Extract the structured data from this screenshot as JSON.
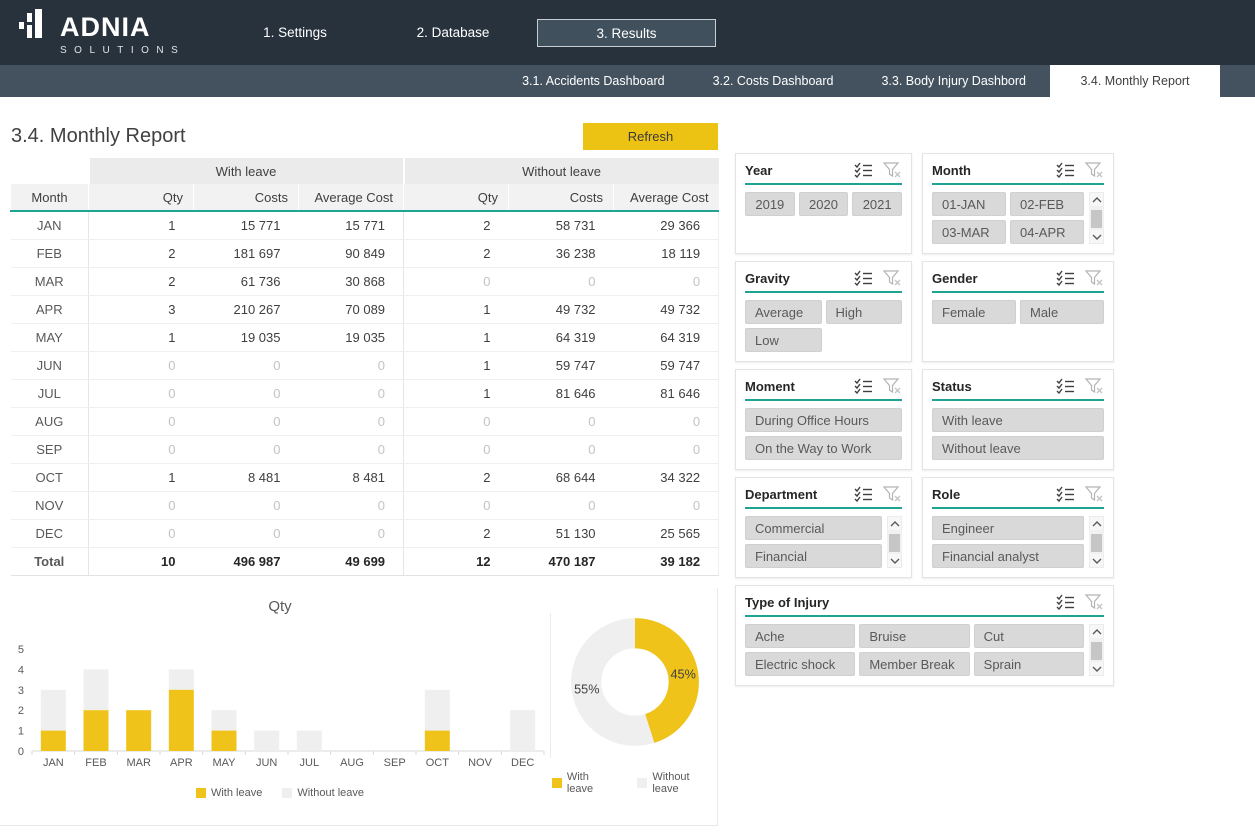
{
  "colors": {
    "header_bg": "#28323C",
    "subnav_bg": "#44525F",
    "accent_teal": "#1FA493",
    "accent_yellow": "#EDC313",
    "chart_yellow": "#EFC319",
    "chart_gray": "#EFEFEF",
    "button_gray": "#D9D9D9"
  },
  "icons": {
    "logo": "bar-chart-logo-icon",
    "multi_select": "multi-select-icon",
    "clear_filter": "clear-filter-icon",
    "scroll_up": "chevron-up-icon",
    "scroll_down": "chevron-down-icon"
  },
  "header": {
    "logo_name": "ADNIA",
    "logo_sub": "SOLUTIONS",
    "tabs": [
      {
        "label": "1. Settings",
        "active": false
      },
      {
        "label": "2. Database",
        "active": false
      },
      {
        "label": "3. Results",
        "active": true
      }
    ]
  },
  "subnav": {
    "tabs": [
      {
        "label": "3.1. Accidents Dashboard",
        "active": false
      },
      {
        "label": "3.2. Costs Dashboard",
        "active": false
      },
      {
        "label": "3.3. Body Injury Dashbord",
        "active": false
      },
      {
        "label": "3.4. Monthly Report",
        "active": true
      }
    ]
  },
  "page": {
    "title": "3.4. Monthly Report",
    "refresh_label": "Refresh"
  },
  "table": {
    "group_headers": [
      "With leave",
      "Without leave"
    ],
    "columns": [
      "Month",
      "Qty",
      "Costs",
      "Average Cost",
      "Qty",
      "Costs",
      "Average Cost"
    ],
    "rows": [
      {
        "month": "JAN",
        "cells": [
          "1",
          "15 771",
          "15 771",
          "2",
          "58 731",
          "29 366"
        ]
      },
      {
        "month": "FEB",
        "cells": [
          "2",
          "181 697",
          "90 849",
          "2",
          "36 238",
          "18 119"
        ]
      },
      {
        "month": "MAR",
        "cells": [
          "2",
          "61 736",
          "30 868",
          "0",
          "0",
          "0"
        ]
      },
      {
        "month": "APR",
        "cells": [
          "3",
          "210 267",
          "70 089",
          "1",
          "49 732",
          "49 732"
        ]
      },
      {
        "month": "MAY",
        "cells": [
          "1",
          "19 035",
          "19 035",
          "1",
          "64 319",
          "64 319"
        ]
      },
      {
        "month": "JUN",
        "cells": [
          "0",
          "0",
          "0",
          "1",
          "59 747",
          "59 747"
        ]
      },
      {
        "month": "JUL",
        "cells": [
          "0",
          "0",
          "0",
          "1",
          "81 646",
          "81 646"
        ]
      },
      {
        "month": "AUG",
        "cells": [
          "0",
          "0",
          "0",
          "0",
          "0",
          "0"
        ]
      },
      {
        "month": "SEP",
        "cells": [
          "0",
          "0",
          "0",
          "0",
          "0",
          "0"
        ]
      },
      {
        "month": "OCT",
        "cells": [
          "1",
          "8 481",
          "8 481",
          "2",
          "68 644",
          "34 322"
        ]
      },
      {
        "month": "NOV",
        "cells": [
          "0",
          "0",
          "0",
          "0",
          "0",
          "0"
        ]
      },
      {
        "month": "DEC",
        "cells": [
          "0",
          "0",
          "0",
          "2",
          "51 130",
          "25 565"
        ]
      }
    ],
    "total": {
      "month": "Total",
      "cells": [
        "10",
        "496 987",
        "49 699",
        "12",
        "470 187",
        "39 182"
      ]
    }
  },
  "slicers": {
    "cards": [
      {
        "title": "Year",
        "width": "a",
        "cols": 3,
        "scroll": false,
        "align": "center",
        "buttons": [
          "2019",
          "2020",
          "2021"
        ]
      },
      {
        "title": "Month",
        "width": "b",
        "cols": 2,
        "scroll": true,
        "align": "left",
        "buttons": [
          "01-JAN",
          "02-FEB",
          "03-MAR",
          "04-APR"
        ]
      },
      {
        "title": "Gravity",
        "width": "a",
        "cols": 2,
        "scroll": false,
        "align": "left",
        "buttons": [
          "Average",
          "High",
          "Low"
        ]
      },
      {
        "title": "Gender",
        "width": "b",
        "cols": 2,
        "scroll": false,
        "align": "left",
        "buttons": [
          "Female",
          "Male"
        ]
      },
      {
        "title": "Moment",
        "width": "a",
        "cols": 1,
        "scroll": false,
        "align": "left",
        "buttons": [
          "During Office Hours",
          "On the Way to Work"
        ]
      },
      {
        "title": "Status",
        "width": "b",
        "cols": 1,
        "scroll": false,
        "align": "left",
        "buttons": [
          "With leave",
          "Without leave"
        ]
      },
      {
        "title": "Department",
        "width": "a",
        "cols": 1,
        "scroll": true,
        "align": "left",
        "buttons": [
          "Commercial",
          "Financial"
        ]
      },
      {
        "title": "Role",
        "width": "b",
        "cols": 1,
        "scroll": true,
        "align": "left",
        "buttons": [
          "Engineer",
          "Financial analyst"
        ]
      },
      {
        "title": "Type of Injury",
        "width": "full",
        "cols": 3,
        "scroll": true,
        "align": "left",
        "buttons": [
          "Ache",
          "Bruise",
          "Cut",
          "Electric shock",
          "Member Break",
          "Sprain"
        ]
      }
    ]
  },
  "chart_data": [
    {
      "type": "bar",
      "title": "Qty",
      "stacked": true,
      "categories": [
        "JAN",
        "FEB",
        "MAR",
        "APR",
        "MAY",
        "JUN",
        "JUL",
        "AUG",
        "SEP",
        "OCT",
        "NOV",
        "DEC"
      ],
      "series": [
        {
          "name": "With leave",
          "color": "#EFC319",
          "values": [
            1,
            2,
            2,
            3,
            1,
            0,
            0,
            0,
            0,
            1,
            0,
            0
          ]
        },
        {
          "name": "Without leave",
          "color": "#EFEFEF",
          "values": [
            2,
            2,
            0,
            1,
            1,
            1,
            1,
            0,
            0,
            2,
            0,
            2
          ]
        }
      ],
      "xlabel": "",
      "ylabel": "",
      "ylim": [
        0,
        5
      ],
      "yticks": [
        0,
        1,
        2,
        3,
        4,
        5
      ],
      "grid": false,
      "legend_position": "bottom"
    },
    {
      "type": "pie",
      "subtype": "donut",
      "slices": [
        {
          "name": "With leave",
          "value": 45,
          "label": "45%",
          "color": "#EFC319"
        },
        {
          "name": "Without leave",
          "value": 55,
          "label": "55%",
          "color": "#EFEFEF"
        }
      ],
      "legend_position": "bottom"
    }
  ]
}
